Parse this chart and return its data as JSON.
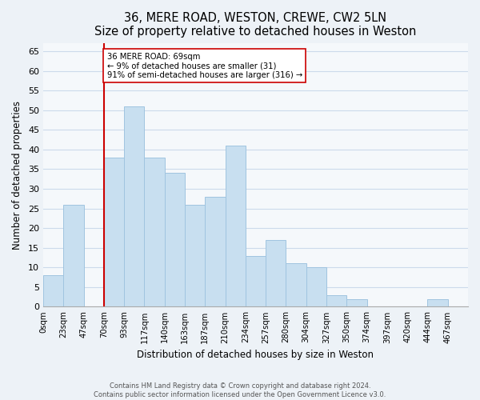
{
  "title": "36, MERE ROAD, WESTON, CREWE, CW2 5LN",
  "subtitle": "Size of property relative to detached houses in Weston",
  "xlabel": "Distribution of detached houses by size in Weston",
  "ylabel": "Number of detached properties",
  "bin_labels": [
    "0sqm",
    "23sqm",
    "47sqm",
    "70sqm",
    "93sqm",
    "117sqm",
    "140sqm",
    "163sqm",
    "187sqm",
    "210sqm",
    "234sqm",
    "257sqm",
    "280sqm",
    "304sqm",
    "327sqm",
    "350sqm",
    "374sqm",
    "397sqm",
    "420sqm",
    "444sqm",
    "467sqm"
  ],
  "bar_values": [
    8,
    26,
    0,
    38,
    51,
    38,
    34,
    26,
    28,
    41,
    13,
    17,
    11,
    10,
    3,
    2,
    0,
    0,
    0,
    2
  ],
  "bar_color": "#c8dff0",
  "bar_edge_color": "#a0c4e0",
  "marker_bin_index": 3,
  "marker_label_line1": "36 MERE ROAD: 69sqm",
  "marker_label_line2": "← 9% of detached houses are smaller (31)",
  "marker_label_line3": "91% of semi-detached houses are larger (316) →",
  "annotation_box_edge": "#cc0000",
  "marker_line_color": "#cc0000",
  "ylim": [
    0,
    67
  ],
  "yticks": [
    0,
    5,
    10,
    15,
    20,
    25,
    30,
    35,
    40,
    45,
    50,
    55,
    60,
    65
  ],
  "footer_line1": "Contains HM Land Registry data © Crown copyright and database right 2024.",
  "footer_line2": "Contains public sector information licensed under the Open Government Licence v3.0.",
  "bg_color": "#edf2f7",
  "plot_bg_color": "#f5f8fb",
  "grid_color": "#ccdaeb"
}
